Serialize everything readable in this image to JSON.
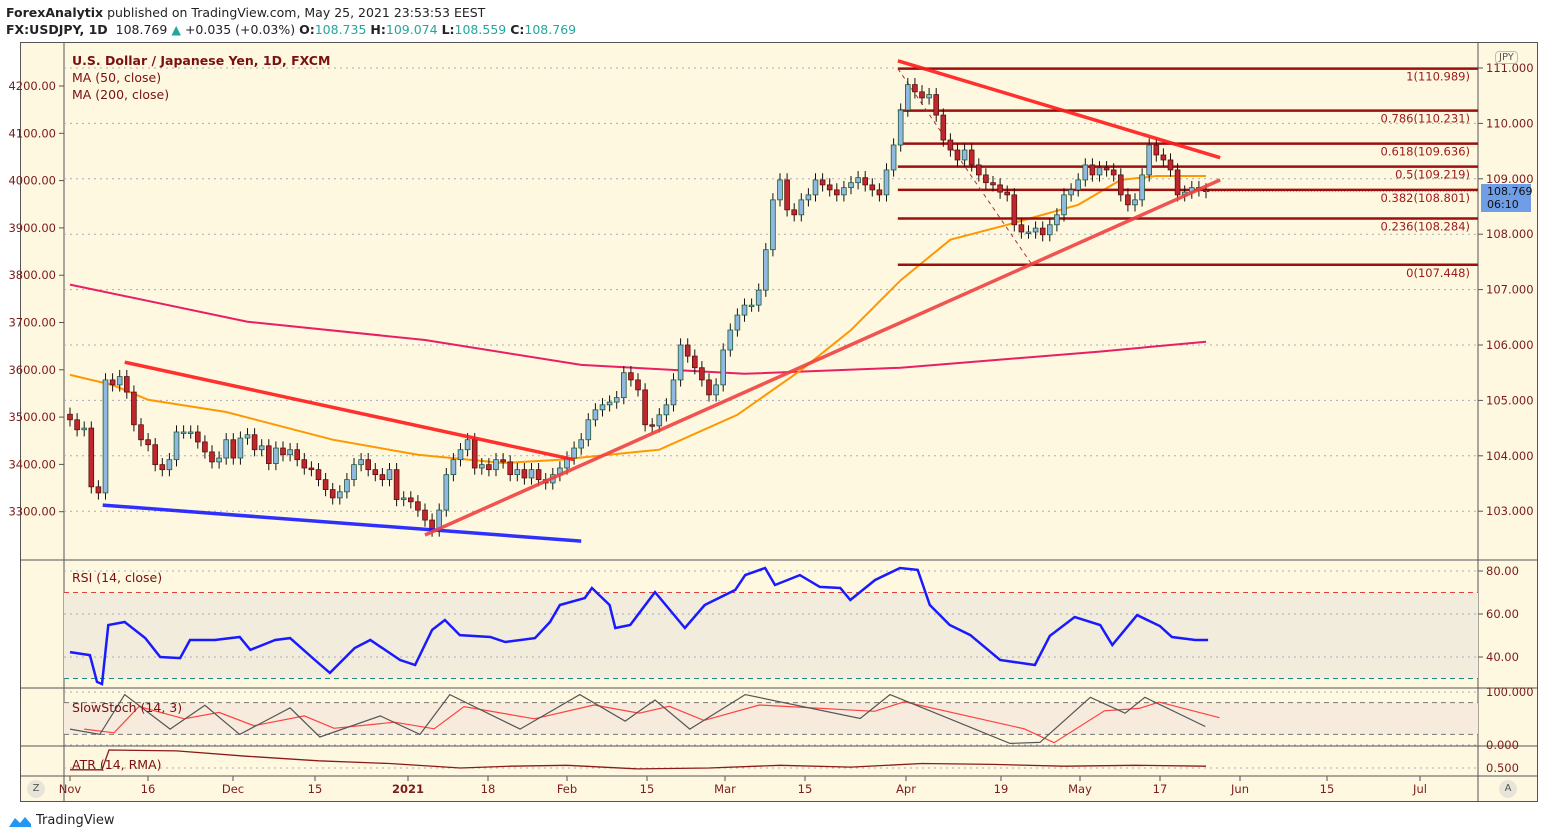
{
  "header": {
    "author": "ForexAnalytix",
    "published": "published on TradingView.com, May 25, 2021 23:53:53 EEST",
    "symbol": "FX:USDJPY, 1D",
    "price": "108.769",
    "change": "+0.035 (+0.03%)",
    "o_label": "O:",
    "o": "108.735",
    "h_label": "H:",
    "h": "109.074",
    "l_label": "L:",
    "l": "108.559",
    "c_label": "C:",
    "c": "108.769"
  },
  "legend": {
    "title": "U.S. Dollar / Japanese Yen, 1D, FXCM",
    "ma50": "MA (50, close)",
    "ma200": "MA (200, close)",
    "rsi": "RSI (14, close)",
    "stoch": "SlowStoch (14, 3)",
    "atr": "ATR (14, RMA)"
  },
  "right_axis": {
    "currency": "JPY",
    "last_price": "108.769",
    "countdown": "06:10",
    "ticks": [
      "111.000",
      "110.000",
      "109.000",
      "108.000",
      "107.000",
      "106.000",
      "105.000",
      "104.000",
      "103.000"
    ],
    "rsi_ticks": [
      "80.00",
      "60.00",
      "40.00"
    ],
    "stoch_ticks": [
      "100.000",
      "0.000"
    ],
    "atr_ticks": [
      "0.500"
    ]
  },
  "left_axis": {
    "ticks": [
      "4200.00",
      "4100.00",
      "4000.00",
      "3900.00",
      "3800.00",
      "3700.00",
      "3600.00",
      "3500.00",
      "3400.00",
      "3300.00"
    ]
  },
  "time_axis": [
    "Nov",
    "16",
    "Dec",
    "15",
    "2021",
    "18",
    "Feb",
    "15",
    "Mar",
    "15",
    "Apr",
    "19",
    "May",
    "17",
    "Jun",
    "15",
    "Jul"
  ],
  "buttons": {
    "zoom": "Z",
    "auto": "A"
  },
  "footer": {
    "brand": "TradingView"
  },
  "colors": {
    "background": "#fef8e1",
    "up": "#90b8e0",
    "down": "#c0272d",
    "ma50": "#ff9800",
    "ma200": "#e91e63",
    "rsi": "#1a1aff",
    "fib": "#9c0f0f",
    "trend": "#ff1a1a",
    "support": "#1a1aff",
    "last_price": "#6f9de6"
  },
  "chart_data": {
    "type": "candlestick",
    "y_axis_range": [
      102.3,
      111.2
    ],
    "closes": [
      104.65,
      104.47,
      104.5,
      103.44,
      103.33,
      105.37,
      105.28,
      105.43,
      105.15,
      104.56,
      104.29,
      104.2,
      103.84,
      103.75,
      103.93,
      104.43,
      104.43,
      104.43,
      104.25,
      104.07,
      103.89,
      103.96,
      104.29,
      103.96,
      104.32,
      104.38,
      104.11,
      104.18,
      103.86,
      104.14,
      104.02,
      104.11,
      103.93,
      103.78,
      103.75,
      103.57,
      103.39,
      103.24,
      103.35,
      103.57,
      103.84,
      103.93,
      103.75,
      103.66,
      103.57,
      103.75,
      103.21,
      103.24,
      103.17,
      103.02,
      102.84,
      102.66,
      103.02,
      103.66,
      103.93,
      104.11,
      104.29,
      103.78,
      103.84,
      103.75,
      103.93,
      103.89,
      103.66,
      103.75,
      103.6,
      103.75,
      103.57,
      103.51,
      103.66,
      103.78,
      103.96,
      104.14,
      104.29,
      104.65,
      104.83,
      104.92,
      104.97,
      105.05,
      105.5,
      105.37,
      105.19,
      104.56,
      104.54,
      104.74,
      104.92,
      105.37,
      106.0,
      105.8,
      105.59,
      105.37,
      105.1,
      105.28,
      105.91,
      106.27,
      106.54,
      106.72,
      106.72,
      106.99,
      107.72,
      108.62,
      108.98,
      108.44,
      108.35,
      108.62,
      108.71,
      108.98,
      108.89,
      108.8,
      108.71,
      108.84,
      108.93,
      109.02,
      108.89,
      108.8,
      108.71,
      109.16,
      109.61,
      110.24,
      110.7,
      110.57,
      110.46,
      110.52,
      110.15,
      109.7,
      109.52,
      109.34,
      109.52,
      109.25,
      109.07,
      108.93,
      108.89,
      108.76,
      108.71,
      108.17,
      108.04,
      108.04,
      108.11,
      107.99,
      108.17,
      108.35,
      108.71,
      108.8,
      108.98,
      109.25,
      109.07,
      109.2,
      109.16,
      109.07,
      108.71,
      108.53,
      108.62,
      109.07,
      109.61,
      109.43,
      109.34,
      109.16,
      108.71,
      108.76,
      108.84,
      108.8,
      108.77
    ],
    "ma50": [
      [
        0,
        105.46
      ],
      [
        6,
        105.28
      ],
      [
        11,
        105.01
      ],
      [
        22,
        104.79
      ],
      [
        37,
        104.29
      ],
      [
        49,
        104.02
      ],
      [
        61,
        103.87
      ],
      [
        69,
        103.93
      ],
      [
        83,
        104.11
      ],
      [
        94,
        104.74
      ],
      [
        103,
        105.55
      ],
      [
        110,
        106.27
      ],
      [
        117,
        107.17
      ],
      [
        124,
        107.9
      ],
      [
        132,
        108.17
      ],
      [
        142,
        108.53
      ],
      [
        148,
        108.98
      ],
      [
        153,
        109.05
      ],
      [
        160,
        109.05
      ]
    ],
    "ma200": [
      [
        0,
        107.09
      ],
      [
        25,
        106.42
      ],
      [
        50,
        106.09
      ],
      [
        72,
        105.64
      ],
      [
        95,
        105.48
      ],
      [
        117,
        105.59
      ],
      [
        145,
        105.88
      ],
      [
        160,
        106.06
      ]
    ],
    "fibonacci": [
      {
        "label": "1(110.989)",
        "value": 110.989
      },
      {
        "label": "0.786(110.231)",
        "value": 110.231
      },
      {
        "label": "0.618(109.636)",
        "value": 109.636
      },
      {
        "label": "0.5(109.219)",
        "value": 109.219
      },
      {
        "label": "0.382(108.801)",
        "value": 108.801
      },
      {
        "label": "0.236(108.284)",
        "value": 108.284
      },
      {
        "label": "0(107.448)",
        "value": 107.448
      }
    ],
    "trendlines": [
      {
        "color": "#ff1a1a",
        "points": [
          [
            7.7,
            105.69
          ],
          [
            71,
            103.93
          ]
        ]
      },
      {
        "color": "#1a1aff",
        "points": [
          [
            4.6,
            103.11
          ],
          [
            72,
            102.46
          ]
        ]
      },
      {
        "color": "#f04040",
        "points": [
          [
            50,
            102.57
          ],
          [
            162,
            108.98
          ]
        ]
      },
      {
        "color": "#ff1a1a",
        "points": [
          [
            116.6,
            111.13
          ],
          [
            162,
            109.38
          ]
        ]
      }
    ],
    "rsi": {
      "range": [
        20,
        90
      ],
      "bands": [
        30,
        70
      ],
      "points": [
        [
          0,
          42.3
        ],
        [
          2.8,
          40.9
        ],
        [
          3.8,
          28.4
        ],
        [
          4.5,
          27.4
        ],
        [
          5.4,
          54.9
        ],
        [
          7.7,
          56.3
        ],
        [
          10.6,
          48.8
        ],
        [
          12.7,
          40
        ],
        [
          15.5,
          39.5
        ],
        [
          16.9,
          47.9
        ],
        [
          20.4,
          47.9
        ],
        [
          23.9,
          49.3
        ],
        [
          25.4,
          43.3
        ],
        [
          28.9,
          47.9
        ],
        [
          31,
          48.8
        ],
        [
          34.5,
          38.6
        ],
        [
          36.6,
          32.6
        ],
        [
          40.1,
          44.2
        ],
        [
          42.3,
          47.9
        ],
        [
          46.5,
          38.6
        ],
        [
          48.6,
          36.3
        ],
        [
          51,
          52.6
        ],
        [
          52.8,
          57.2
        ],
        [
          54.9,
          50.2
        ],
        [
          59.2,
          49.3
        ],
        [
          61.3,
          47
        ],
        [
          65.5,
          48.8
        ],
        [
          67.6,
          56.3
        ],
        [
          69,
          64.2
        ],
        [
          72.5,
          67.4
        ],
        [
          73.5,
          72.1
        ],
        [
          76,
          64.2
        ],
        [
          76.8,
          53.5
        ],
        [
          78.9,
          54.9
        ],
        [
          82.4,
          70.2
        ],
        [
          86.6,
          53.5
        ],
        [
          89.4,
          64.2
        ],
        [
          93.7,
          71.2
        ],
        [
          95.1,
          78.1
        ],
        [
          97.9,
          81.4
        ],
        [
          99.3,
          73.5
        ],
        [
          102.8,
          78.1
        ],
        [
          105.6,
          72.6
        ],
        [
          108.5,
          72.1
        ],
        [
          109.9,
          66.5
        ],
        [
          113.4,
          75.8
        ],
        [
          116.9,
          81.4
        ],
        [
          119.4,
          80.5
        ],
        [
          121.1,
          64.2
        ],
        [
          123.9,
          54.9
        ],
        [
          126.8,
          50.2
        ],
        [
          131,
          38.6
        ],
        [
          135.9,
          36.3
        ],
        [
          138,
          49.8
        ],
        [
          141.5,
          58.6
        ],
        [
          145.1,
          54.9
        ],
        [
          146.8,
          45.6
        ],
        [
          150.3,
          59.5
        ],
        [
          153.5,
          54.4
        ],
        [
          155.2,
          49.3
        ],
        [
          158.5,
          47.9
        ],
        [
          160.3,
          47.9
        ]
      ]
    },
    "stoch_k": [
      [
        0,
        30
      ],
      [
        4.2,
        20
      ],
      [
        7.7,
        95
      ],
      [
        14.1,
        30
      ],
      [
        19,
        75
      ],
      [
        23.9,
        20
      ],
      [
        31,
        70
      ],
      [
        35.2,
        15
      ],
      [
        43.7,
        55
      ],
      [
        49.3,
        20
      ],
      [
        53.5,
        95
      ],
      [
        63.4,
        30
      ],
      [
        71.8,
        95
      ],
      [
        78.2,
        45
      ],
      [
        82.4,
        85
      ],
      [
        87.3,
        30
      ],
      [
        95.1,
        95
      ],
      [
        111.3,
        50
      ],
      [
        115.5,
        95
      ],
      [
        132.4,
        3
      ],
      [
        136.6,
        5
      ],
      [
        143.7,
        90
      ],
      [
        148.6,
        60
      ],
      [
        151.4,
        90
      ],
      [
        159.9,
        35
      ]
    ],
    "atr": [
      [
        0,
        0.48
      ],
      [
        4.5,
        0.48
      ],
      [
        5.5,
        0.7
      ],
      [
        15,
        0.69
      ],
      [
        25,
        0.63
      ],
      [
        35,
        0.58
      ],
      [
        45,
        0.55
      ],
      [
        55,
        0.5
      ],
      [
        62,
        0.52
      ],
      [
        70,
        0.53
      ],
      [
        80,
        0.49
      ],
      [
        90,
        0.5
      ],
      [
        100,
        0.53
      ],
      [
        110,
        0.51
      ],
      [
        120,
        0.55
      ],
      [
        130,
        0.54
      ],
      [
        140,
        0.52
      ],
      [
        150,
        0.53
      ],
      [
        160,
        0.52
      ]
    ]
  }
}
